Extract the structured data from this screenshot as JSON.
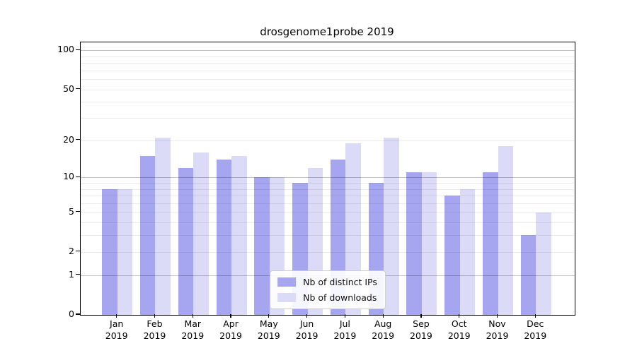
{
  "title": "drosgenome1probe 2019",
  "legend": {
    "items": [
      {
        "label": "Nb of distinct IPs",
        "color": "#a6a6f0"
      },
      {
        "label": "Nb of downloads",
        "color": "#dbdbf8"
      }
    ]
  },
  "chart_data": {
    "type": "bar",
    "title": "drosgenome1probe 2019",
    "scale": "log1p",
    "categories": [
      "Jan",
      "Feb",
      "Mar",
      "Apr",
      "May",
      "Jun",
      "Jul",
      "Aug",
      "Sep",
      "Oct",
      "Nov",
      "Dec"
    ],
    "year_label": "2019",
    "series": [
      {
        "name": "Nb of distinct IPs",
        "color": "#a6a6f0",
        "values": [
          8,
          15,
          12,
          14,
          10,
          9,
          14,
          9,
          11,
          7,
          11,
          3
        ]
      },
      {
        "name": "Nb of downloads",
        "color": "#dbdbf8",
        "values": [
          8,
          21,
          16,
          15,
          10,
          12,
          19,
          21,
          11,
          8,
          18,
          5
        ]
      }
    ],
    "yticks": [
      0,
      1,
      2,
      5,
      10,
      20,
      50,
      100
    ],
    "minor_gridlines": [
      2,
      3,
      4,
      5,
      6,
      7,
      8,
      9,
      20,
      30,
      40,
      50,
      60,
      70,
      80,
      90
    ],
    "major_gridlines": [
      1,
      10,
      100
    ],
    "ylim": [
      0,
      115
    ],
    "xlabel": "",
    "ylabel": "",
    "grid": true,
    "grid_above_bars": true,
    "legend_position": "lower center",
    "axis_color": "#000000",
    "background_color": "#ffffff"
  }
}
